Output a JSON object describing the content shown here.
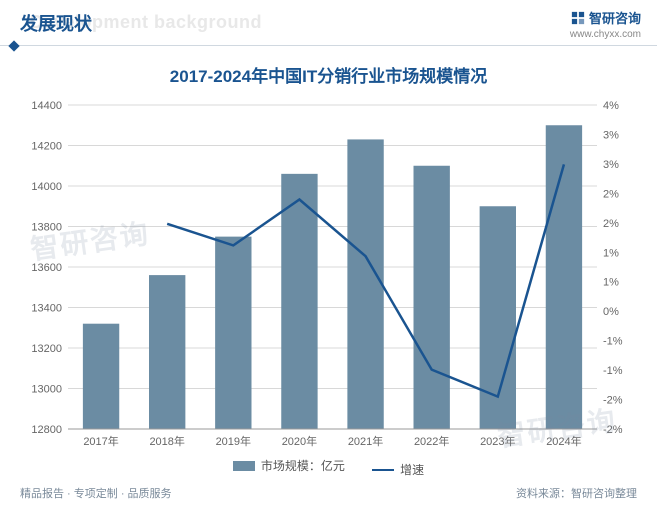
{
  "header": {
    "title_cn": "发展现状",
    "title_bg_en": "Development background",
    "brand_name": "智研咨询",
    "brand_url": "www.chyxx.com"
  },
  "chart": {
    "title": "2017-2024年中国IT分销行业市场规模情况",
    "type": "bar+line",
    "categories": [
      "2017年",
      "2018年",
      "2019年",
      "2020年",
      "2021年",
      "2022年",
      "2023年",
      "2024年"
    ],
    "bars": {
      "label": "市场规模：亿元",
      "values": [
        13320,
        13560,
        13750,
        14060,
        14230,
        14100,
        13900,
        14300
      ],
      "color": "#6b8ca3",
      "bar_width_ratio": 0.55
    },
    "line": {
      "label": "增速",
      "values": [
        null,
        1.8,
        1.4,
        2.25,
        1.2,
        -0.9,
        -1.4,
        2.9
      ],
      "color": "#1a5490",
      "stroke_width": 2.5
    },
    "left_axis": {
      "min": 12800,
      "max": 14400,
      "step": 200,
      "ticks": [
        12800,
        13000,
        13200,
        13400,
        13600,
        13800,
        14000,
        14200,
        14400
      ]
    },
    "right_axis": {
      "min": -2,
      "max": 4,
      "ticks": [
        -2,
        -2,
        -1,
        -1,
        0,
        1,
        1,
        2,
        2,
        3,
        3,
        4
      ],
      "tick_labels": [
        "-2%",
        "-2%",
        "-1%",
        "-1%",
        "0%",
        "1%",
        "1%",
        "2%",
        "2%",
        "3%",
        "3%",
        "4%"
      ]
    },
    "grid_color": "#d8d8d8",
    "background_color": "#ffffff",
    "label_fontsize": 11
  },
  "legend": {
    "bar_label": "市场规模：亿元",
    "line_label": "增速"
  },
  "footer": {
    "left": "精品报告 · 专项定制 · 品质服务",
    "right": "资料来源：智研咨询整理"
  },
  "watermark": "智研咨询"
}
